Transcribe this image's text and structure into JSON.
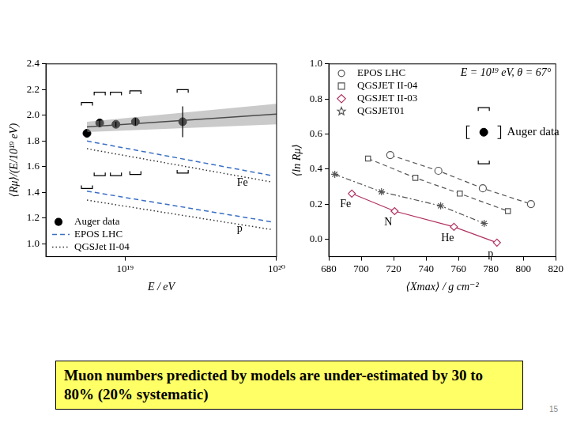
{
  "chart_data": [
    {
      "type": "scatter",
      "x_label": "E / eV",
      "y_label": "⟨Rμ⟩/(E/10¹⁹ eV)",
      "log": "x",
      "grid": false,
      "legend": "bottom-left",
      "xlim": [
        3e+18,
        1e+20
      ],
      "xticks": [
        {
          "value": 1e+19,
          "label": "10¹⁹"
        },
        {
          "value": 1e+20,
          "label": "10²⁰"
        }
      ],
      "ylim": [
        0.9,
        2.4
      ],
      "yticks": [
        {
          "value": 1,
          "label": "1.0"
        },
        1.2,
        1.4,
        1.6,
        1.8,
        {
          "value": 2,
          "label": "2.0"
        },
        2.2,
        2.4
      ],
      "series": [
        {
          "name": "Auger data",
          "type": "scatter",
          "marker": "circle",
          "color": "#000000",
          "x": [
            5.6e+18,
            6.8e+18,
            8.7e+18,
            1.17e+19,
            2.4e+19
          ],
          "values": [
            1.86,
            1.94,
            1.93,
            1.95,
            1.95
          ],
          "errors": [
            0.02,
            0.03,
            0.02,
            0.03,
            0.12
          ],
          "sys_low": [
            1.43,
            1.53,
            1.53,
            1.54,
            1.55
          ],
          "sys_high": [
            2.1,
            2.18,
            2.18,
            2.19,
            2.2
          ]
        },
        {
          "name": "EPOS LHC",
          "type": "line",
          "line_style": "dashed",
          "color": "#3a6fc4",
          "curves": [
            {
              "label": "Fe",
              "x": [
                5.6e+18,
                9.4e+19
              ],
              "values": [
                1.8,
                1.53
              ]
            },
            {
              "label": "p",
              "x": [
                5.6e+18,
                9.4e+19
              ],
              "values": [
                1.41,
                1.17
              ]
            }
          ]
        },
        {
          "name": "QGSJet II-04",
          "type": "line",
          "line_style": "dotted",
          "color": "#333333",
          "curves": [
            {
              "x": [
                5.6e+18,
                9.4e+19
              ],
              "values": [
                1.74,
                1.48
              ]
            },
            {
              "x": [
                5.6e+18,
                9.4e+19
              ],
              "values": [
                1.34,
                1.11
              ]
            }
          ]
        }
      ],
      "fit": {
        "x": [
          5.6e+18,
          1e+20
        ],
        "values": [
          1.91,
          2.01
        ],
        "band_low": [
          1.87,
          1.93
        ],
        "band_high": [
          1.95,
          2.09
        ]
      }
    },
    {
      "type": "scatter",
      "x_label": "⟨Xmax⟩ / g cm⁻²",
      "y_label": "⟨ln Rμ⟩",
      "subtitle": "E = 10¹⁹ eV, θ = 67°",
      "grid": false,
      "legend": "top-left",
      "xlim": [
        680,
        820
      ],
      "xticks": [
        680,
        700,
        720,
        740,
        760,
        780,
        800,
        820
      ],
      "ylim": [
        -0.1,
        1.0
      ],
      "yticks": [
        {
          "value": 0,
          "label": "0.0"
        },
        0.2,
        0.4,
        0.6,
        0.8,
        {
          "value": 1,
          "label": "1.0"
        }
      ],
      "series": [
        {
          "name": "EPOS LHC",
          "type": "line",
          "marker": "circle",
          "line_style": "dashed",
          "color": "#555555",
          "x": [
            717.9,
            747.6,
            775,
            804.7
          ],
          "values": [
            0.48,
            0.39,
            0.29,
            0.2
          ]
        },
        {
          "name": "QGSJET II-04",
          "type": "line",
          "marker": "square",
          "line_style": "dashed",
          "color": "#555555",
          "x": [
            704.2,
            733.4,
            760.8,
            790.5
          ],
          "values": [
            0.46,
            0.35,
            0.26,
            0.16
          ]
        },
        {
          "name": "QGSJET II-03",
          "type": "line",
          "marker": "diamond",
          "line_style": "solid",
          "color": "#b03060",
          "x": [
            694.2,
            720.6,
            757.2,
            783.7
          ],
          "values": [
            0.26,
            0.16,
            0.07,
            -0.02
          ],
          "point_labels": [
            "Fe",
            "N",
            "He",
            "p"
          ]
        },
        {
          "name": "QGSJET01",
          "type": "line",
          "marker": "star",
          "line_style": "dashdot",
          "color": "#555555",
          "x": [
            683.7,
            712.5,
            749,
            775.9
          ],
          "values": [
            0.37,
            0.27,
            0.19,
            0.09
          ]
        }
      ],
      "measurement": {
        "label": "Auger data",
        "x": [
          775.6
        ],
        "values": [
          0.61
        ],
        "errors": [
          0.02
        ],
        "sys_low": [
          0.43
        ],
        "sys_high": [
          0.75
        ],
        "x_sys_low": [
          765
        ],
        "x_sys_high": [
          786
        ]
      }
    }
  ],
  "text_box": "Muon numbers predicted by models are under-estimated by 30 to 80% (20% systematic)",
  "page_number": "15"
}
